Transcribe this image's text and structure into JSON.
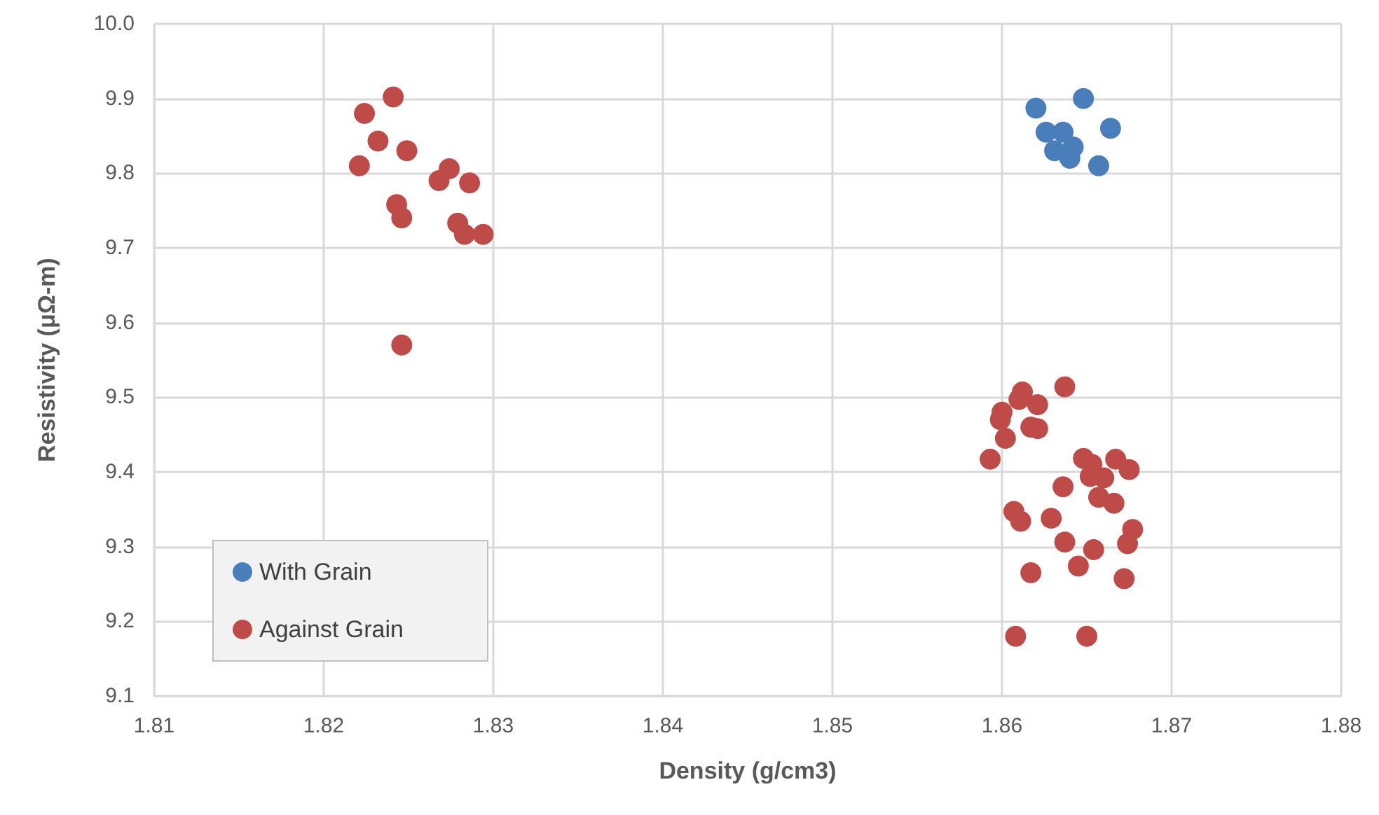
{
  "chart_data": {
    "type": "scatter",
    "xlabel": "Density (g/cm3)",
    "ylabel": "Resistivity (μΩ-m)",
    "xlim": [
      1.81,
      1.88
    ],
    "xticks": [
      1.81,
      1.82,
      1.83,
      1.84,
      1.85,
      1.86,
      1.87,
      1.88
    ],
    "ylim": [
      9.1,
      10.0
    ],
    "yticks": [
      9.1,
      9.2,
      9.3,
      9.4,
      9.5,
      9.6,
      9.7,
      9.8,
      9.9,
      {
        "value": 10.0,
        "label": "10.0"
      }
    ],
    "grid": true,
    "legend": "bottom left",
    "marker": "circle",
    "series": [
      {
        "name": "With Grain",
        "color": "#4a7ebb",
        "x": [
          1.862,
          1.8648,
          1.8626,
          1.8636,
          1.8664,
          1.8631,
          1.8642,
          1.864,
          1.8657
        ],
        "values": [
          9.887,
          9.9,
          9.855,
          9.855,
          9.86,
          9.83,
          9.835,
          9.82,
          9.81
        ]
      },
      {
        "name": "Against Grain",
        "color": "#be4b48",
        "x": [
          1.8241,
          1.8224,
          1.8232,
          1.8249,
          1.8221,
          1.8274,
          1.8268,
          1.8286,
          1.8243,
          1.8246,
          1.8279,
          1.8283,
          1.8294,
          1.8246,
          1.8612,
          1.8637,
          1.861,
          1.8621,
          1.86,
          1.8599,
          1.8617,
          1.8621,
          1.8602,
          1.8593,
          1.8648,
          1.8653,
          1.8667,
          1.8675,
          1.8652,
          1.866,
          1.8636,
          1.8657,
          1.8666,
          1.8607,
          1.8611,
          1.8629,
          1.8677,
          1.8674,
          1.8637,
          1.8654,
          1.8645,
          1.8617,
          1.8672,
          1.8608,
          1.865
        ],
        "values": [
          9.902,
          9.88,
          9.843,
          9.83,
          9.81,
          9.806,
          9.79,
          9.787,
          9.758,
          9.74,
          9.733,
          9.718,
          9.718,
          9.57,
          9.507,
          9.514,
          9.497,
          9.49,
          9.48,
          9.47,
          9.46,
          9.458,
          9.445,
          9.417,
          9.418,
          9.41,
          9.417,
          9.403,
          9.394,
          9.392,
          9.38,
          9.366,
          9.358,
          9.347,
          9.334,
          9.338,
          9.323,
          9.304,
          9.306,
          9.296,
          9.274,
          9.265,
          9.257,
          9.18,
          9.18
        ]
      }
    ]
  }
}
